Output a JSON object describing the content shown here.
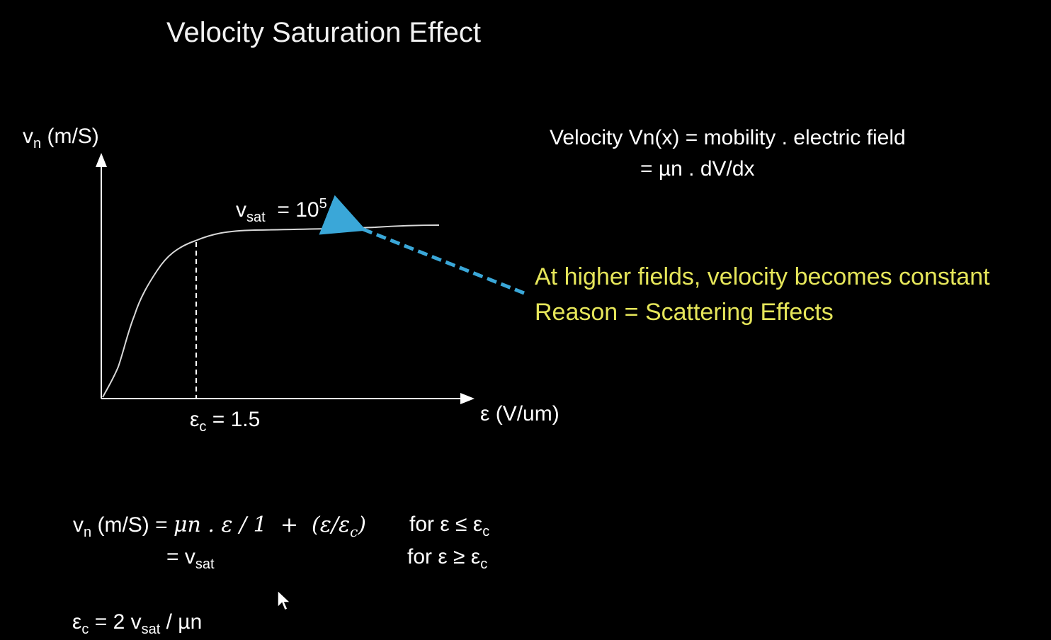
{
  "slide": {
    "title": "Velocity Saturation Effect"
  },
  "graph": {
    "y_axis_label": "v",
    "y_axis_sub": "n",
    "y_axis_unit": " (m/S)",
    "x_axis_label": "ε (V/um)",
    "vsat_label": "v",
    "vsat_sub": "sat",
    "vsat_value": "  = 10",
    "vsat_exp": "5",
    "ec_label": "ε",
    "ec_sub": "c",
    "ec_value": " = 1.5",
    "curve_color": "#d9d9d9",
    "arrow_color": "#3aa7d8"
  },
  "equations": {
    "velocity_line1": "Velocity Vn(x) = mobility . electric field",
    "velocity_line2": "= µn . dV/dx"
  },
  "notes": {
    "line1": "At higher fields, velocity becomes constant",
    "line2": "Reason = Scattering Effects",
    "color": "#e6e65a"
  },
  "formulas": {
    "f1_lhs_v": "v",
    "f1_lhs_sub": "n",
    "f1_lhs_rest": " (m/S) = ",
    "f1_math": "μn . ε / 1  +  (ε/ε",
    "f1_math_sub": "c",
    "f1_math_end": ")",
    "f1_cond": "for ε ≤ ε",
    "f1_cond_sub": "c",
    "f2_lhs": "= v",
    "f2_lhs_sub": "sat",
    "f2_cond": "for ε ≥ ε",
    "f2_cond_sub": "c",
    "f3_a": "ε",
    "f3_a_sub": "c",
    "f3_b": " = 2 v",
    "f3_b_sub": "sat",
    "f3_c": " / µn"
  }
}
